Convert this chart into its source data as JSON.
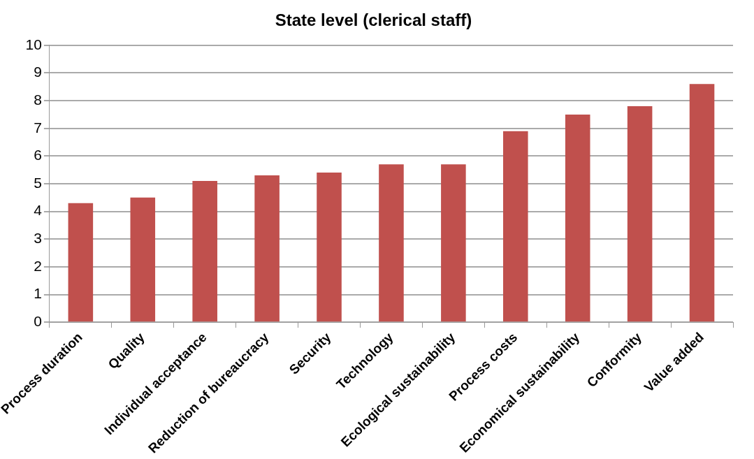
{
  "chart_data": {
    "type": "bar",
    "title": "State level (clerical staff)",
    "categories": [
      "Process duration",
      "Quality",
      "Individual acceptance",
      "Reduction of bureaucracy",
      "Security",
      "Technology",
      "Ecological sustainability",
      "Process costs",
      "Economical sustainability",
      "Conformity",
      "Value added"
    ],
    "values": [
      4.3,
      4.5,
      5.1,
      5.3,
      5.4,
      5.7,
      5.7,
      6.9,
      7.5,
      7.8,
      8.6
    ],
    "color": "#c0504d",
    "ylim": [
      0,
      10
    ],
    "yticks": [
      0,
      1,
      2,
      3,
      4,
      5,
      6,
      7,
      8,
      9,
      10
    ],
    "grid": "y",
    "legend": false
  }
}
